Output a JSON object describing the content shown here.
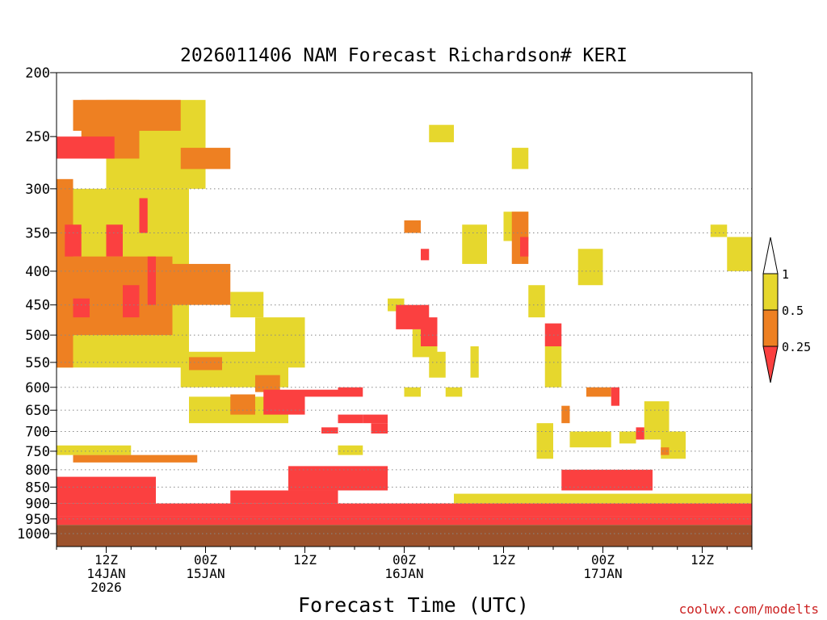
{
  "chart_data": {
    "type": "heatmap",
    "title": "2026011406 NAM Forecast Richardson# KERI",
    "xlabel": "Forecast Time (UTC)",
    "ylabel": "",
    "y_scale": "log-pressure",
    "ylim": [
      1000,
      200
    ],
    "y_ticks": [
      200,
      250,
      300,
      350,
      400,
      450,
      500,
      550,
      600,
      650,
      700,
      750,
      800,
      850,
      900,
      950,
      1000
    ],
    "y_gridlines": [
      300,
      350,
      400,
      450,
      500,
      550,
      600,
      650,
      700,
      750,
      800,
      850,
      900,
      950,
      1000
    ],
    "x_range": [
      "2026-01-14T06Z",
      "2026-01-17T18Z"
    ],
    "x_ticks": [
      {
        "time": "2026-01-14T12Z",
        "lines": [
          "12Z",
          "14JAN",
          "2026"
        ]
      },
      {
        "time": "2026-01-15T00Z",
        "lines": [
          "00Z",
          "15JAN"
        ]
      },
      {
        "time": "2026-01-15T12Z",
        "lines": [
          "12Z"
        ]
      },
      {
        "time": "2026-01-16T00Z",
        "lines": [
          "00Z",
          "16JAN"
        ]
      },
      {
        "time": "2026-01-16T12Z",
        "lines": [
          "12Z"
        ]
      },
      {
        "time": "2026-01-17T00Z",
        "lines": [
          "00Z",
          "17JAN"
        ]
      },
      {
        "time": "2026-01-17T12Z",
        "lines": [
          "12Z"
        ]
      }
    ],
    "colorbar": {
      "labels": [
        "1",
        "0.5",
        "0.25"
      ],
      "classes": [
        {
          "range": "> 1",
          "color": "#ffffff"
        },
        {
          "range": "0.5 - 1",
          "color": "#e6d72d"
        },
        {
          "range": "0.25 - 0.5",
          "color": "#ee8022"
        },
        {
          "range": "< 0.25",
          "color": "#fb4040"
        }
      ]
    },
    "colors": {
      "ri_0_25": "#fb4040",
      "ri_0_25_0_5": "#ee8022",
      "ri_0_5_1": "#e6d72d",
      "below_ground": "#9c522c"
    },
    "below_ground_top_hpa": 970,
    "regions": [
      {
        "t0": "2026-01-14T06Z",
        "t1": "2026-01-17T18Z",
        "p_top": 940,
        "p_bottom": 970,
        "class": "<0.25"
      },
      {
        "t0": "2026-01-14T06Z",
        "t1": "2026-01-16T00Z",
        "p_top": 900,
        "p_bottom": 940,
        "class": "<0.25"
      },
      {
        "t0": "2026-01-14T06Z",
        "t1": "2026-01-14T18Z",
        "p_top": 820,
        "p_bottom": 900,
        "class": "<0.25"
      },
      {
        "t0": "2026-01-14T08Z",
        "t1": "2026-01-14T23Z",
        "p_top": 760,
        "p_bottom": 780,
        "class": "0.25-0.5"
      },
      {
        "t0": "2026-01-14T06Z",
        "t1": "2026-01-14T15Z",
        "p_top": 735,
        "p_bottom": 760,
        "class": "0.5-1"
      },
      {
        "t0": "2026-01-15T03Z",
        "t1": "2026-01-15T16Z",
        "p_top": 860,
        "p_bottom": 900,
        "class": "<0.25"
      },
      {
        "t0": "2026-01-15T10Z",
        "t1": "2026-01-15T22Z",
        "p_top": 790,
        "p_bottom": 860,
        "class": "<0.25"
      },
      {
        "t0": "2026-01-16T00Z",
        "t1": "2026-01-17T18Z",
        "p_top": 900,
        "p_bottom": 940,
        "class": "<0.25"
      },
      {
        "t0": "2026-01-16T19Z",
        "t1": "2026-01-17T06Z",
        "p_top": 800,
        "p_bottom": 860,
        "class": "<0.25"
      },
      {
        "t0": "2026-01-16T06Z",
        "t1": "2026-01-17T18Z",
        "p_top": 870,
        "p_bottom": 900,
        "class": "0.5-1"
      },
      {
        "t0": "2026-01-14T06Z",
        "t1": "2026-01-14T08Z",
        "p_top": 290,
        "p_bottom": 560,
        "class": "0.25-0.5"
      },
      {
        "t0": "2026-01-14T06Z",
        "t1": "2026-01-14T13Z",
        "p_top": 250,
        "p_bottom": 270,
        "class": "<0.25"
      },
      {
        "t0": "2026-01-14T08Z",
        "t1": "2026-01-14T21Z",
        "p_top": 220,
        "p_bottom": 245,
        "class": "0.25-0.5"
      },
      {
        "t0": "2026-01-14T09Z",
        "t1": "2026-01-14T16Z",
        "p_top": 220,
        "p_bottom": 270,
        "class": "0.25-0.5"
      },
      {
        "t0": "2026-01-14T12Z",
        "t1": "2026-01-15T00Z",
        "p_top": 220,
        "p_bottom": 300,
        "class": "0.5-1"
      },
      {
        "t0": "2026-01-14T06Z",
        "t1": "2026-01-14T22Z",
        "p_top": 300,
        "p_bottom": 560,
        "class": "0.5-1"
      },
      {
        "t0": "2026-01-14T08Z",
        "t1": "2026-01-14T20Z",
        "p_top": 380,
        "p_bottom": 500,
        "class": "0.25-0.5"
      },
      {
        "t0": "2026-01-14T12Z",
        "t1": "2026-01-15T03Z",
        "p_top": 390,
        "p_bottom": 450,
        "class": "0.25-0.5"
      },
      {
        "t0": "2026-01-14T21Z",
        "t1": "2026-01-15T03Z",
        "p_top": 260,
        "p_bottom": 280,
        "class": "0.25-0.5"
      },
      {
        "t0": "2026-01-14T08Z",
        "t1": "2026-01-14T10Z",
        "p_top": 440,
        "p_bottom": 470,
        "class": "<0.25"
      },
      {
        "t0": "2026-01-14T14Z",
        "t1": "2026-01-14T16Z",
        "p_top": 420,
        "p_bottom": 470,
        "class": "<0.25"
      },
      {
        "t0": "2026-01-14T17Z",
        "t1": "2026-01-14T18Z",
        "p_top": 380,
        "p_bottom": 450,
        "class": "<0.25"
      },
      {
        "t0": "2026-01-14T12Z",
        "t1": "2026-01-14T14Z",
        "p_top": 340,
        "p_bottom": 380,
        "class": "<0.25"
      },
      {
        "t0": "2026-01-14T07Z",
        "t1": "2026-01-14T09Z",
        "p_top": 340,
        "p_bottom": 380,
        "class": "<0.25"
      },
      {
        "t0": "2026-01-14T16Z",
        "t1": "2026-01-14T17Z",
        "p_top": 310,
        "p_bottom": 350,
        "class": "<0.25"
      },
      {
        "t0": "2026-01-15T03Z",
        "t1": "2026-01-15T07Z",
        "p_top": 430,
        "p_bottom": 470,
        "class": "0.5-1"
      },
      {
        "t0": "2026-01-14T21Z",
        "t1": "2026-01-15T10Z",
        "p_top": 530,
        "p_bottom": 600,
        "class": "0.5-1"
      },
      {
        "t0": "2026-01-15T06Z",
        "t1": "2026-01-15T12Z",
        "p_top": 470,
        "p_bottom": 560,
        "class": "0.5-1"
      },
      {
        "t0": "2026-01-14T22Z",
        "t1": "2026-01-15T10Z",
        "p_top": 620,
        "p_bottom": 680,
        "class": "0.5-1"
      },
      {
        "t0": "2026-01-14T22Z",
        "t1": "2026-01-15T02Z",
        "p_top": 540,
        "p_bottom": 565,
        "class": "0.25-0.5"
      },
      {
        "t0": "2026-01-15T06Z",
        "t1": "2026-01-15T09Z",
        "p_top": 575,
        "p_bottom": 610,
        "class": "0.25-0.5"
      },
      {
        "t0": "2026-01-15T03Z",
        "t1": "2026-01-15T06Z",
        "p_top": 615,
        "p_bottom": 660,
        "class": "0.25-0.5"
      },
      {
        "t0": "2026-01-15T07Z",
        "t1": "2026-01-15T12Z",
        "p_top": 605,
        "p_bottom": 660,
        "class": "<0.25"
      },
      {
        "t0": "2026-01-15T12Z",
        "t1": "2026-01-15T16Z",
        "p_top": 605,
        "p_bottom": 620,
        "class": "<0.25"
      },
      {
        "t0": "2026-01-15T14Z",
        "t1": "2026-01-15T16Z",
        "p_top": 690,
        "p_bottom": 705,
        "class": "<0.25"
      },
      {
        "t0": "2026-01-15T16Z",
        "t1": "2026-01-15T19Z",
        "p_top": 600,
        "p_bottom": 620,
        "class": "<0.25"
      },
      {
        "t0": "2026-01-15T16Z",
        "t1": "2026-01-15T19Z",
        "p_top": 660,
        "p_bottom": 680,
        "class": "<0.25"
      },
      {
        "t0": "2026-01-15T19Z",
        "t1": "2026-01-15T22Z",
        "p_top": 660,
        "p_bottom": 680,
        "class": "<0.25"
      },
      {
        "t0": "2026-01-15T20Z",
        "t1": "2026-01-15T22Z",
        "p_top": 680,
        "p_bottom": 705,
        "class": "<0.25"
      },
      {
        "t0": "2026-01-15T16Z",
        "t1": "2026-01-15T19Z",
        "p_top": 735,
        "p_bottom": 760,
        "class": "0.5-1"
      },
      {
        "t0": "2026-01-15T22Z",
        "t1": "2026-01-16T00Z",
        "p_top": 440,
        "p_bottom": 460,
        "class": "0.5-1"
      },
      {
        "t0": "2026-01-15T23Z",
        "t1": "2026-01-16T03Z",
        "p_top": 450,
        "p_bottom": 490,
        "class": "<0.25"
      },
      {
        "t0": "2026-01-16T01Z",
        "t1": "2026-01-16T04Z",
        "p_top": 490,
        "p_bottom": 540,
        "class": "0.5-1"
      },
      {
        "t0": "2026-01-16T02Z",
        "t1": "2026-01-16T04Z",
        "p_top": 470,
        "p_bottom": 520,
        "class": "<0.25"
      },
      {
        "t0": "2026-01-16T03Z",
        "t1": "2026-01-16T05Z",
        "p_top": 530,
        "p_bottom": 580,
        "class": "0.5-1"
      },
      {
        "t0": "2026-01-16T00Z",
        "t1": "2026-01-16T02Z",
        "p_top": 335,
        "p_bottom": 350,
        "class": "0.25-0.5"
      },
      {
        "t0": "2026-01-16T02Z",
        "t1": "2026-01-16T03Z",
        "p_top": 370,
        "p_bottom": 385,
        "class": "<0.25"
      },
      {
        "t0": "2026-01-16T03Z",
        "t1": "2026-01-16T06Z",
        "p_top": 240,
        "p_bottom": 255,
        "class": "0.5-1"
      },
      {
        "t0": "2026-01-16T00Z",
        "t1": "2026-01-16T02Z",
        "p_top": 600,
        "p_bottom": 620,
        "class": "0.5-1"
      },
      {
        "t0": "2026-01-16T05Z",
        "t1": "2026-01-16T07Z",
        "p_top": 600,
        "p_bottom": 620,
        "class": "0.5-1"
      },
      {
        "t0": "2026-01-16T07Z",
        "t1": "2026-01-16T10Z",
        "p_top": 340,
        "p_bottom": 390,
        "class": "0.5-1"
      },
      {
        "t0": "2026-01-16T08Z",
        "t1": "2026-01-16T09Z",
        "p_top": 520,
        "p_bottom": 580,
        "class": "0.5-1"
      },
      {
        "t0": "2026-01-16T12Z",
        "t1": "2026-01-16T15Z",
        "p_top": 325,
        "p_bottom": 360,
        "class": "0.5-1"
      },
      {
        "t0": "2026-01-16T13Z",
        "t1": "2026-01-16T15Z",
        "p_top": 325,
        "p_bottom": 390,
        "class": "0.25-0.5"
      },
      {
        "t0": "2026-01-16T14Z",
        "t1": "2026-01-16T15Z",
        "p_top": 355,
        "p_bottom": 380,
        "class": "<0.25"
      },
      {
        "t0": "2026-01-16T15Z",
        "t1": "2026-01-16T17Z",
        "p_top": 420,
        "p_bottom": 470,
        "class": "0.5-1"
      },
      {
        "t0": "2026-01-16T13Z",
        "t1": "2026-01-16T15Z",
        "p_top": 260,
        "p_bottom": 280,
        "class": "0.5-1"
      },
      {
        "t0": "2026-01-16T17Z",
        "t1": "2026-01-16T19Z",
        "p_top": 480,
        "p_bottom": 520,
        "class": "<0.25"
      },
      {
        "t0": "2026-01-16T17Z",
        "t1": "2026-01-16T19Z",
        "p_top": 520,
        "p_bottom": 600,
        "class": "0.5-1"
      },
      {
        "t0": "2026-01-16T16Z",
        "t1": "2026-01-16T18Z",
        "p_top": 680,
        "p_bottom": 770,
        "class": "0.5-1"
      },
      {
        "t0": "2026-01-16T19Z",
        "t1": "2026-01-16T20Z",
        "p_top": 640,
        "p_bottom": 680,
        "class": "0.25-0.5"
      },
      {
        "t0": "2026-01-16T20Z",
        "t1": "2026-01-17T01Z",
        "p_top": 700,
        "p_bottom": 740,
        "class": "0.5-1"
      },
      {
        "t0": "2026-01-16T21Z",
        "t1": "2026-01-17T00Z",
        "p_top": 370,
        "p_bottom": 420,
        "class": "0.5-1"
      },
      {
        "t0": "2026-01-16T22Z",
        "t1": "2026-01-17T01Z",
        "p_top": 600,
        "p_bottom": 620,
        "class": "0.25-0.5"
      },
      {
        "t0": "2026-01-17T01Z",
        "t1": "2026-01-17T02Z",
        "p_top": 600,
        "p_bottom": 640,
        "class": "<0.25"
      },
      {
        "t0": "2026-01-17T02Z",
        "t1": "2026-01-17T04Z",
        "p_top": 700,
        "p_bottom": 730,
        "class": "0.5-1"
      },
      {
        "t0": "2026-01-17T04Z",
        "t1": "2026-01-17T05Z",
        "p_top": 690,
        "p_bottom": 720,
        "class": "<0.25"
      },
      {
        "t0": "2026-01-17T05Z",
        "t1": "2026-01-17T08Z",
        "p_top": 630,
        "p_bottom": 720,
        "class": "0.5-1"
      },
      {
        "t0": "2026-01-17T07Z",
        "t1": "2026-01-17T10Z",
        "p_top": 700,
        "p_bottom": 770,
        "class": "0.5-1"
      },
      {
        "t0": "2026-01-17T07Z",
        "t1": "2026-01-17T08Z",
        "p_top": 740,
        "p_bottom": 760,
        "class": "0.25-0.5"
      },
      {
        "t0": "2026-01-17T13Z",
        "t1": "2026-01-17T15Z",
        "p_top": 340,
        "p_bottom": 355,
        "class": "0.5-1"
      },
      {
        "t0": "2026-01-17T15Z",
        "t1": "2026-01-17T18Z",
        "p_top": 355,
        "p_bottom": 400,
        "class": "0.5-1"
      }
    ]
  },
  "credit": "coolwx.com/modelts"
}
